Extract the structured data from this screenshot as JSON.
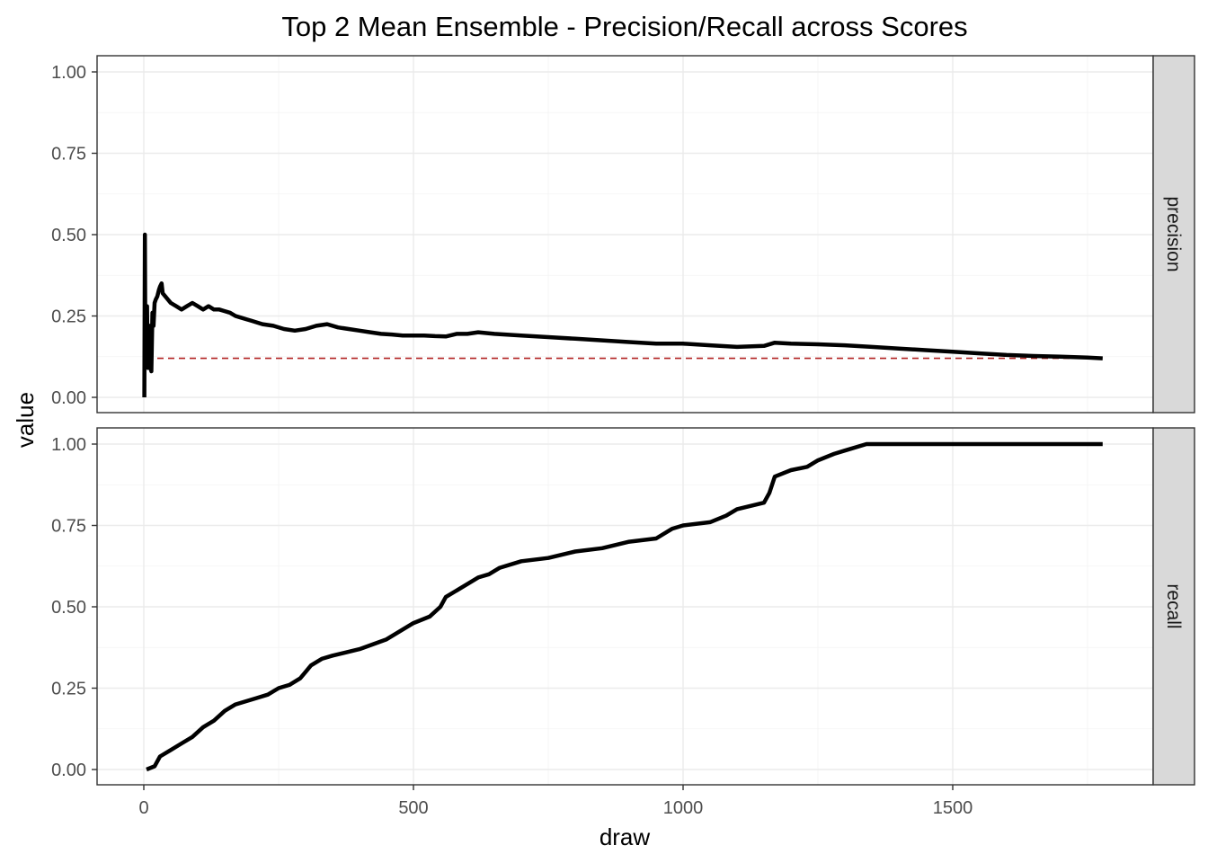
{
  "chart_data": {
    "type": "line",
    "title": "Top 2 Mean Ensemble - Precision/Recall across Scores",
    "xlabel": "draw",
    "ylabel": "value",
    "xlim": [
      0,
      1780
    ],
    "ylim": [
      0,
      1
    ],
    "x_ticks": [
      0,
      500,
      1000,
      1500
    ],
    "x_tick_labels": [
      "0",
      "500",
      "1000",
      "1500"
    ],
    "y_ticks": [
      0,
      0.25,
      0.5,
      0.75,
      1
    ],
    "y_tick_labels": [
      "0.00",
      "0.25",
      "0.50",
      "0.75",
      "1.00"
    ],
    "grid": true,
    "line_color": "#000000",
    "reference_color": "#b22222",
    "facets": [
      {
        "label": "precision",
        "reference_line": {
          "y": 0.12,
          "x_range": [
            5,
            1778
          ],
          "style": "dashed"
        },
        "series": {
          "x": [
            1,
            2,
            3,
            4,
            5,
            6,
            7,
            8,
            10,
            12,
            14,
            16,
            18,
            20,
            22,
            25,
            28,
            30,
            33,
            35,
            40,
            45,
            50,
            60,
            70,
            80,
            90,
            100,
            110,
            120,
            130,
            140,
            150,
            160,
            170,
            180,
            190,
            200,
            220,
            240,
            260,
            280,
            300,
            320,
            340,
            360,
            380,
            400,
            420,
            440,
            460,
            480,
            500,
            520,
            540,
            560,
            580,
            600,
            620,
            650,
            700,
            750,
            800,
            850,
            900,
            950,
            1000,
            1050,
            1100,
            1150,
            1170,
            1200,
            1250,
            1300,
            1350,
            1400,
            1450,
            1500,
            1550,
            1600,
            1650,
            1700,
            1750,
            1778
          ],
          "y": [
            0,
            0.5,
            0.1,
            0.25,
            0.1,
            0.28,
            0.12,
            0.09,
            0.22,
            0.1,
            0.08,
            0.26,
            0.22,
            0.29,
            0.3,
            0.31,
            0.33,
            0.34,
            0.35,
            0.32,
            0.31,
            0.3,
            0.29,
            0.28,
            0.27,
            0.28,
            0.29,
            0.28,
            0.27,
            0.28,
            0.27,
            0.27,
            0.265,
            0.26,
            0.25,
            0.245,
            0.24,
            0.235,
            0.225,
            0.22,
            0.21,
            0.205,
            0.21,
            0.22,
            0.225,
            0.215,
            0.21,
            0.205,
            0.2,
            0.195,
            0.193,
            0.19,
            0.19,
            0.19,
            0.188,
            0.187,
            0.195,
            0.195,
            0.2,
            0.195,
            0.19,
            0.185,
            0.18,
            0.175,
            0.17,
            0.165,
            0.165,
            0.16,
            0.155,
            0.158,
            0.168,
            0.165,
            0.163,
            0.16,
            0.155,
            0.15,
            0.145,
            0.14,
            0.135,
            0.13,
            0.127,
            0.125,
            0.122,
            0.12
          ]
        }
      },
      {
        "label": "recall",
        "series": {
          "x": [
            5,
            20,
            30,
            50,
            70,
            90,
            110,
            130,
            150,
            170,
            190,
            210,
            230,
            250,
            270,
            290,
            300,
            310,
            330,
            350,
            400,
            450,
            500,
            530,
            550,
            560,
            580,
            600,
            620,
            640,
            660,
            700,
            750,
            800,
            850,
            900,
            950,
            980,
            1000,
            1050,
            1080,
            1100,
            1150,
            1160,
            1170,
            1200,
            1230,
            1250,
            1280,
            1300,
            1340,
            1400,
            1500,
            1600,
            1700,
            1778
          ],
          "y": [
            0,
            0.01,
            0.04,
            0.06,
            0.08,
            0.1,
            0.13,
            0.15,
            0.18,
            0.2,
            0.21,
            0.22,
            0.23,
            0.25,
            0.26,
            0.28,
            0.3,
            0.32,
            0.34,
            0.35,
            0.37,
            0.4,
            0.45,
            0.47,
            0.5,
            0.53,
            0.55,
            0.57,
            0.59,
            0.6,
            0.62,
            0.64,
            0.65,
            0.67,
            0.68,
            0.7,
            0.71,
            0.74,
            0.75,
            0.76,
            0.78,
            0.8,
            0.82,
            0.85,
            0.9,
            0.92,
            0.93,
            0.95,
            0.97,
            0.98,
            1,
            1,
            1,
            1,
            1,
            1
          ]
        }
      }
    ]
  }
}
